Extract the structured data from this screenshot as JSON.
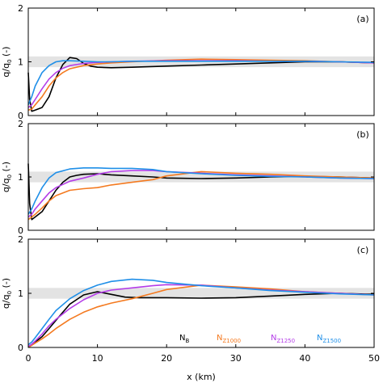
{
  "chart_data": {
    "type": "line",
    "xlabel": "x (km)",
    "ylabel_main": "q/q",
    "ylabel_sub": "0",
    "ylabel_unit": " (-)",
    "xlim": [
      0,
      50
    ],
    "xticks": [
      "0",
      "10",
      "20",
      "30",
      "40",
      "50"
    ],
    "yticks": [
      "0",
      "1",
      "2"
    ],
    "ylim": [
      0,
      2
    ],
    "band": [
      0.9,
      1.1
    ],
    "legend": [
      {
        "main": "N",
        "sub": "B",
        "color": "#000000"
      },
      {
        "main": "N",
        "sub": "Z1000",
        "color": "#f47a20"
      },
      {
        "main": "N",
        "sub": "Z1250",
        "color": "#b43de8"
      },
      {
        "main": "N",
        "sub": "Z1500",
        "color": "#1f8fe8"
      }
    ],
    "panels": [
      {
        "label": "(a)",
        "series": [
          {
            "color": "#000000",
            "x": [
              0,
              0.2,
              0.5,
              1,
              2,
              3,
              4,
              5,
              6,
              7,
              8,
              9,
              10,
              12,
              15,
              20,
              25,
              30,
              35,
              40,
              45,
              50
            ],
            "y": [
              0.8,
              0.3,
              0.08,
              0.1,
              0.15,
              0.35,
              0.7,
              0.95,
              1.08,
              1.06,
              0.97,
              0.92,
              0.9,
              0.89,
              0.9,
              0.92,
              0.94,
              0.96,
              0.98,
              1.0,
              1.0,
              0.98
            ]
          },
          {
            "color": "#f47a20",
            "x": [
              0,
              0.5,
              1,
              2,
              3,
              4,
              5,
              6,
              8,
              10,
              12,
              15,
              20,
              25,
              30,
              35,
              40,
              45,
              50
            ],
            "y": [
              0.1,
              0.12,
              0.2,
              0.35,
              0.55,
              0.7,
              0.8,
              0.87,
              0.93,
              0.96,
              0.98,
              1.0,
              1.03,
              1.05,
              1.04,
              1.03,
              1.02,
              1.0,
              0.98
            ]
          },
          {
            "color": "#b43de8",
            "x": [
              0,
              0.5,
              1,
              2,
              3,
              4,
              5,
              6,
              8,
              10,
              12,
              15,
              20,
              25,
              30,
              35,
              40,
              45,
              50
            ],
            "y": [
              0.15,
              0.2,
              0.3,
              0.5,
              0.68,
              0.8,
              0.88,
              0.93,
              0.97,
              0.99,
              1.0,
              1.01,
              1.02,
              1.02,
              1.02,
              1.01,
              1.01,
              1.0,
              0.98
            ]
          },
          {
            "color": "#1f8fe8",
            "x": [
              0,
              0.5,
              1,
              2,
              3,
              4,
              5,
              6,
              8,
              10,
              12,
              15,
              20,
              25,
              30,
              35,
              40,
              45,
              50
            ],
            "y": [
              0.2,
              0.35,
              0.55,
              0.8,
              0.93,
              1.0,
              1.02,
              1.02,
              1.01,
              1.0,
              1.0,
              1.01,
              1.01,
              1.01,
              1.01,
              1.01,
              1.01,
              1.0,
              0.99
            ]
          }
        ]
      },
      {
        "label": "(b)",
        "series": [
          {
            "color": "#000000",
            "x": [
              0,
              0.2,
              0.5,
              1,
              2,
              3,
              4,
              5,
              6,
              7,
              8,
              10,
              12,
              15,
              18,
              20,
              25,
              30,
              35,
              40,
              45,
              50
            ],
            "y": [
              1.25,
              0.5,
              0.2,
              0.25,
              0.35,
              0.55,
              0.75,
              0.9,
              1.0,
              1.03,
              1.05,
              1.06,
              1.04,
              1.02,
              1.0,
              0.98,
              0.97,
              0.98,
              1.0,
              1.01,
              1.0,
              0.98
            ]
          },
          {
            "color": "#f47a20",
            "x": [
              0,
              0.5,
              1,
              2,
              3,
              4,
              6,
              8,
              10,
              12,
              15,
              18,
              20,
              25,
              30,
              35,
              40,
              45,
              50
            ],
            "y": [
              0.2,
              0.25,
              0.3,
              0.42,
              0.55,
              0.65,
              0.75,
              0.78,
              0.8,
              0.85,
              0.9,
              0.95,
              1.02,
              1.1,
              1.07,
              1.05,
              1.02,
              1.0,
              0.98
            ]
          },
          {
            "color": "#b43de8",
            "x": [
              0,
              0.5,
              1,
              2,
              3,
              4,
              6,
              8,
              10,
              12,
              15,
              18,
              20,
              25,
              30,
              35,
              40,
              45,
              50
            ],
            "y": [
              0.25,
              0.3,
              0.4,
              0.55,
              0.7,
              0.8,
              0.92,
              0.98,
              1.05,
              1.1,
              1.12,
              1.12,
              1.1,
              1.07,
              1.04,
              1.02,
              1.0,
              0.98,
              0.97
            ]
          },
          {
            "color": "#1f8fe8",
            "x": [
              0,
              0.5,
              1,
              2,
              3,
              4,
              6,
              8,
              10,
              12,
              15,
              18,
              20,
              25,
              30,
              35,
              40,
              45,
              50
            ],
            "y": [
              0.3,
              0.4,
              0.55,
              0.8,
              0.98,
              1.08,
              1.15,
              1.17,
              1.17,
              1.16,
              1.16,
              1.14,
              1.1,
              1.06,
              1.03,
              1.01,
              1.0,
              0.98,
              0.97
            ]
          }
        ]
      },
      {
        "label": "(c)",
        "series": [
          {
            "color": "#000000",
            "x": [
              0,
              0.5,
              1,
              2,
              3,
              4,
              5,
              6,
              8,
              10,
              12,
              14,
              16,
              20,
              25,
              30,
              35,
              40,
              45,
              50
            ],
            "y": [
              0.0,
              0.05,
              0.1,
              0.2,
              0.35,
              0.5,
              0.65,
              0.8,
              0.97,
              1.03,
              0.98,
              0.93,
              0.92,
              0.92,
              0.91,
              0.92,
              0.95,
              0.98,
              1.0,
              0.98
            ]
          },
          {
            "color": "#f47a20",
            "x": [
              0,
              0.5,
              1,
              2,
              3,
              4,
              6,
              8,
              10,
              12,
              15,
              18,
              20,
              25,
              30,
              35,
              40,
              45,
              50
            ],
            "y": [
              0.0,
              0.04,
              0.08,
              0.16,
              0.25,
              0.35,
              0.52,
              0.65,
              0.75,
              0.82,
              0.9,
              1.0,
              1.07,
              1.15,
              1.12,
              1.08,
              1.03,
              1.0,
              0.97
            ]
          },
          {
            "color": "#b43de8",
            "x": [
              0,
              0.5,
              1,
              2,
              3,
              4,
              6,
              8,
              10,
              12,
              15,
              18,
              20,
              25,
              30,
              35,
              40,
              45,
              50
            ],
            "y": [
              0.02,
              0.06,
              0.12,
              0.25,
              0.4,
              0.52,
              0.72,
              0.88,
              1.0,
              1.06,
              1.1,
              1.14,
              1.16,
              1.15,
              1.1,
              1.06,
              1.03,
              1.0,
              0.97
            ]
          },
          {
            "color": "#1f8fe8",
            "x": [
              0,
              0.5,
              1,
              2,
              3,
              4,
              6,
              8,
              10,
              12,
              15,
              18,
              20,
              25,
              30,
              35,
              40,
              45,
              50
            ],
            "y": [
              0.05,
              0.1,
              0.18,
              0.35,
              0.52,
              0.68,
              0.9,
              1.05,
              1.15,
              1.22,
              1.26,
              1.24,
              1.2,
              1.14,
              1.1,
              1.05,
              1.02,
              0.99,
              0.97
            ]
          }
        ]
      }
    ]
  }
}
